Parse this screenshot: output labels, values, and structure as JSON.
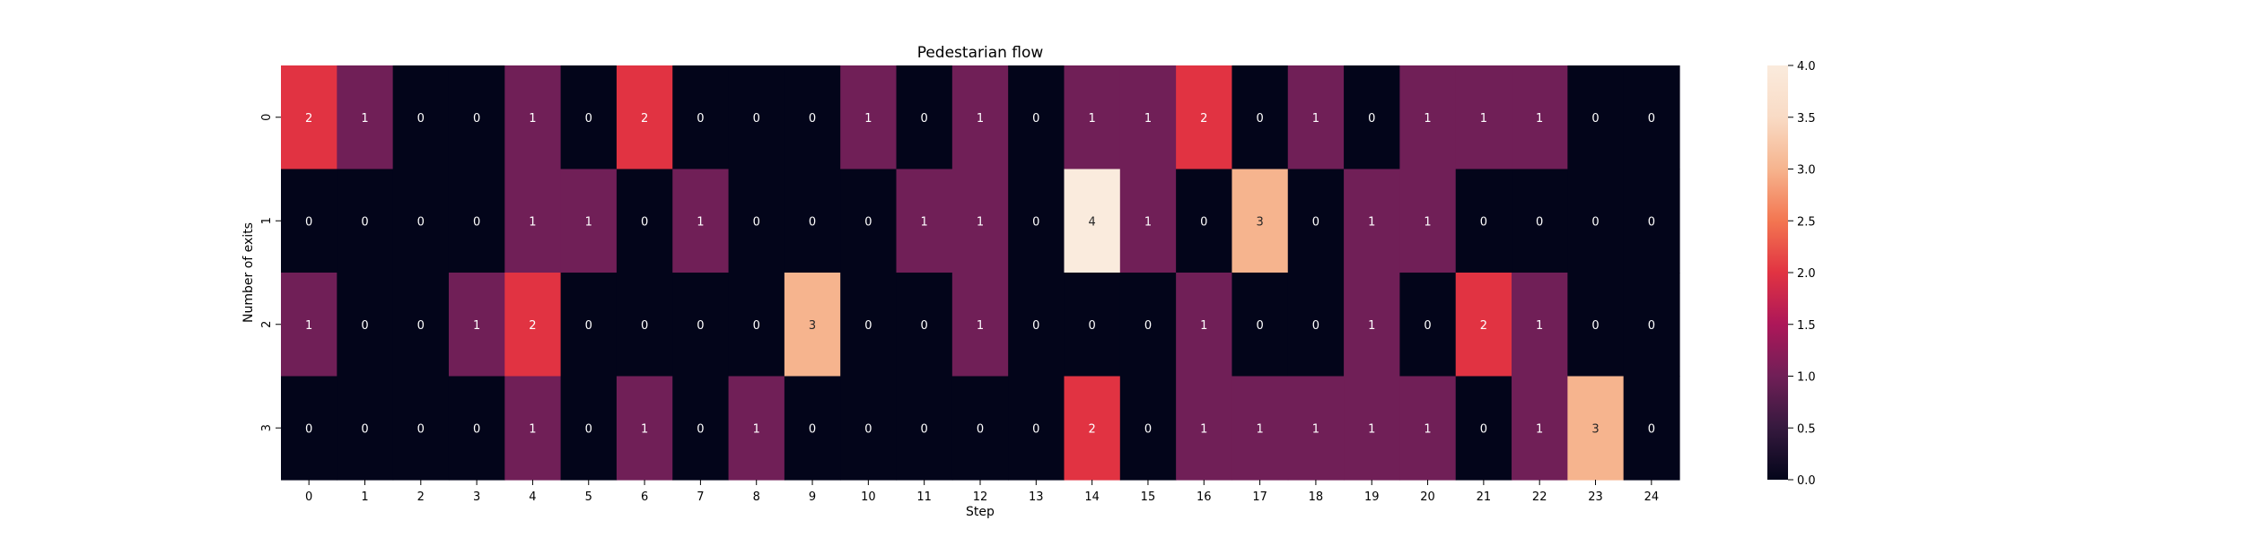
{
  "chart_data": {
    "type": "heatmap",
    "title": "Pedestarian flow",
    "xlabel": "Step",
    "ylabel": "Number of exits",
    "x_categories": [
      "0",
      "1",
      "2",
      "3",
      "4",
      "5",
      "6",
      "7",
      "8",
      "9",
      "10",
      "11",
      "12",
      "13",
      "14",
      "15",
      "16",
      "17",
      "18",
      "19",
      "20",
      "21",
      "22",
      "23",
      "24"
    ],
    "y_categories": [
      "0",
      "1",
      "2",
      "3"
    ],
    "values": [
      [
        2,
        1,
        0,
        0,
        1,
        0,
        2,
        0,
        0,
        0,
        1,
        0,
        1,
        0,
        1,
        1,
        2,
        0,
        1,
        0,
        1,
        1,
        1,
        0,
        0
      ],
      [
        0,
        0,
        0,
        0,
        1,
        1,
        0,
        1,
        0,
        0,
        0,
        1,
        1,
        0,
        4,
        1,
        0,
        3,
        0,
        1,
        1,
        0,
        0,
        0,
        0
      ],
      [
        1,
        0,
        0,
        1,
        2,
        0,
        0,
        0,
        0,
        3,
        0,
        0,
        1,
        0,
        0,
        0,
        1,
        0,
        0,
        1,
        0,
        2,
        1,
        0,
        0
      ],
      [
        0,
        0,
        0,
        0,
        1,
        0,
        1,
        0,
        1,
        0,
        0,
        0,
        0,
        0,
        2,
        0,
        1,
        1,
        1,
        1,
        1,
        0,
        1,
        3,
        0
      ]
    ],
    "vmin": 0,
    "vmax": 4,
    "colormap": "rocket",
    "colorbar_ticks": [
      "0.0",
      "0.5",
      "1.0",
      "1.5",
      "2.0",
      "2.5",
      "3.0",
      "3.5",
      "4.0"
    ],
    "annotations": true,
    "grid": false
  }
}
